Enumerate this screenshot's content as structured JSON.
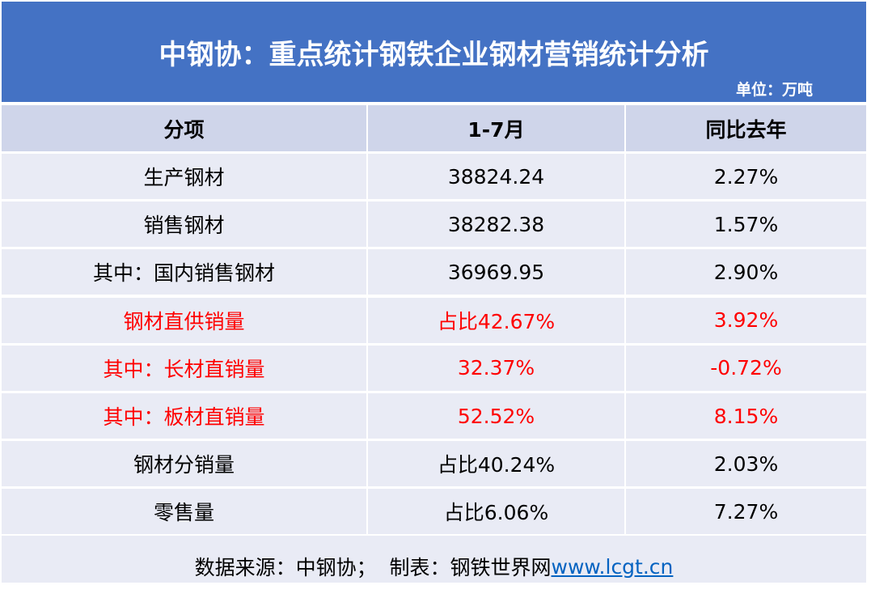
{
  "header": {
    "title": "中钢协：重点统计钢铁企业钢材营销统计分析",
    "unit": "单位：万吨"
  },
  "table": {
    "columns": [
      "分项",
      "1-7月",
      "同比去年"
    ],
    "rows": [
      {
        "cells": [
          "生产钢材",
          "38824.24",
          "2.27%"
        ],
        "color": "#000000"
      },
      {
        "cells": [
          "销售钢材",
          "38282.38",
          "1.57%"
        ],
        "color": "#000000"
      },
      {
        "cells": [
          "其中：国内销售钢材",
          "36969.95",
          "2.90%"
        ],
        "color": "#000000"
      },
      {
        "cells": [
          "钢材直供销量",
          "占比42.67%",
          "3.92%"
        ],
        "color": "#ff0000"
      },
      {
        "cells": [
          "其中：长材直销量",
          "32.37%",
          "-0.72%"
        ],
        "color": "#ff0000"
      },
      {
        "cells": [
          "其中：板材直销量",
          "52.52%",
          "8.15%"
        ],
        "color": "#ff0000"
      },
      {
        "cells": [
          "钢材分销量",
          "占比40.24%",
          "2.03%"
        ],
        "color": "#000000"
      },
      {
        "cells": [
          "零售量",
          "占比6.06%",
          "7.27%"
        ],
        "color": "#000000"
      }
    ]
  },
  "footer": {
    "source": "数据来源：中钢协；  制表：钢铁世界网",
    "link": "www.lcgt.cn"
  }
}
